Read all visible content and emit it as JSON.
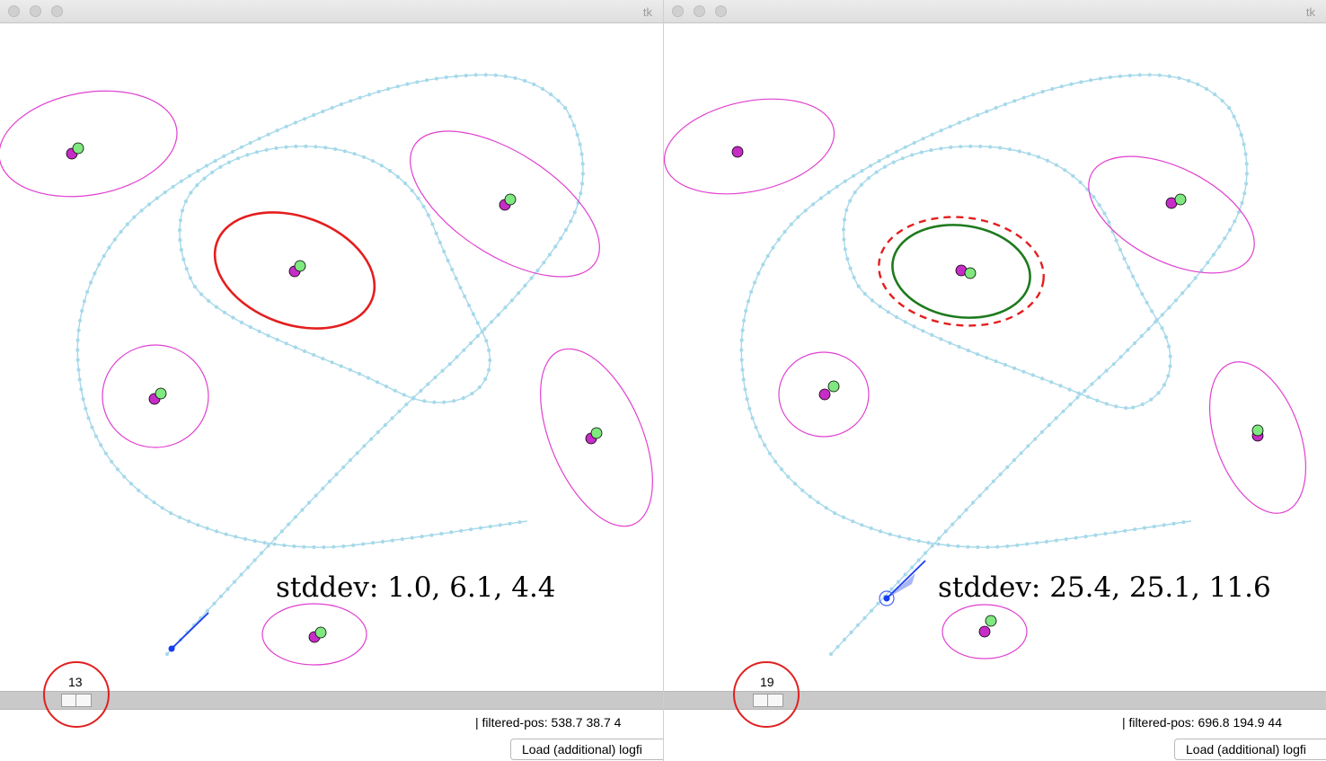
{
  "panels": [
    {
      "window_title": "tk",
      "slider_value": "13",
      "status_text": "| filtered-pos: 538.7 38.7 4",
      "load_button": "Load (additional) logfi",
      "stddev_label": "stddev: 1.0, 6.1, 4.4"
    },
    {
      "window_title": "tk",
      "slider_value": "19",
      "status_text": "| filtered-pos: 696.8 194.9 44",
      "load_button": "Load (additional) logfi",
      "stddev_label": "stddev: 25.4, 25.1, 11.6"
    }
  ],
  "colors": {
    "path": "#a6d9ea",
    "landmark_ellipse": "#e040d0",
    "landmark_estimate": "#c62cc6",
    "landmark_truth": "#7fe87f",
    "highlight_red": "#e41e1e",
    "covariance_green": "#1e7a1e",
    "robot": "#1a3cf0",
    "annotation_circle": "#e02020"
  }
}
